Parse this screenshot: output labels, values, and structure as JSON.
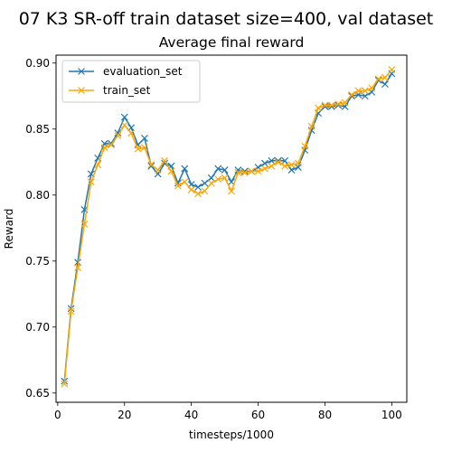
{
  "figure": {
    "suptitle": "07 K3 SR-off train dataset size=400, val dataset"
  },
  "chart_data": {
    "type": "line",
    "title": "Average final reward",
    "xlabel": "timesteps/1000",
    "ylabel": "Reward",
    "xlim": [
      -0.5,
      104.5
    ],
    "ylim": [
      0.643,
      0.906
    ],
    "xticks": [
      0,
      20,
      40,
      60,
      80,
      100
    ],
    "yticks": [
      0.65,
      0.7,
      0.75,
      0.8,
      0.85,
      0.9
    ],
    "ytick_labels": [
      "0.65",
      "0.70",
      "0.75",
      "0.80",
      "0.85",
      "0.90"
    ],
    "grid": false,
    "legend_position": "upper-left",
    "x": [
      2,
      4,
      6,
      8,
      10,
      12,
      14,
      16,
      18,
      20,
      22,
      24,
      26,
      28,
      30,
      32,
      34,
      36,
      38,
      40,
      42,
      44,
      46,
      48,
      50,
      52,
      54,
      56,
      58,
      60,
      62,
      64,
      66,
      68,
      70,
      72,
      74,
      76,
      78,
      80,
      82,
      84,
      86,
      88,
      90,
      92,
      94,
      96,
      98,
      100
    ],
    "series": [
      {
        "name": "evaluation_set",
        "color": "#1f77b4",
        "marker": "x",
        "values": [
          0.659,
          0.714,
          0.749,
          0.789,
          0.816,
          0.828,
          0.839,
          0.839,
          0.847,
          0.859,
          0.851,
          0.838,
          0.843,
          0.822,
          0.816,
          0.824,
          0.822,
          0.809,
          0.82,
          0.808,
          0.806,
          0.809,
          0.813,
          0.82,
          0.819,
          0.81,
          0.819,
          0.818,
          0.818,
          0.821,
          0.824,
          0.826,
          0.826,
          0.826,
          0.819,
          0.821,
          0.834,
          0.849,
          0.862,
          0.867,
          0.867,
          0.868,
          0.867,
          0.875,
          0.876,
          0.875,
          0.878,
          0.887,
          0.884,
          0.892
        ]
      },
      {
        "name": "train_set",
        "color": "#ffa500",
        "marker": "x",
        "values": [
          0.657,
          0.712,
          0.745,
          0.778,
          0.81,
          0.823,
          0.836,
          0.838,
          0.845,
          0.853,
          0.847,
          0.835,
          0.836,
          0.823,
          0.819,
          0.826,
          0.818,
          0.807,
          0.81,
          0.804,
          0.801,
          0.803,
          0.809,
          0.812,
          0.813,
          0.803,
          0.817,
          0.817,
          0.818,
          0.818,
          0.82,
          0.822,
          0.825,
          0.822,
          0.823,
          0.824,
          0.837,
          0.852,
          0.866,
          0.868,
          0.868,
          0.869,
          0.87,
          0.876,
          0.879,
          0.879,
          0.881,
          0.888,
          0.889,
          0.895
        ]
      }
    ]
  }
}
